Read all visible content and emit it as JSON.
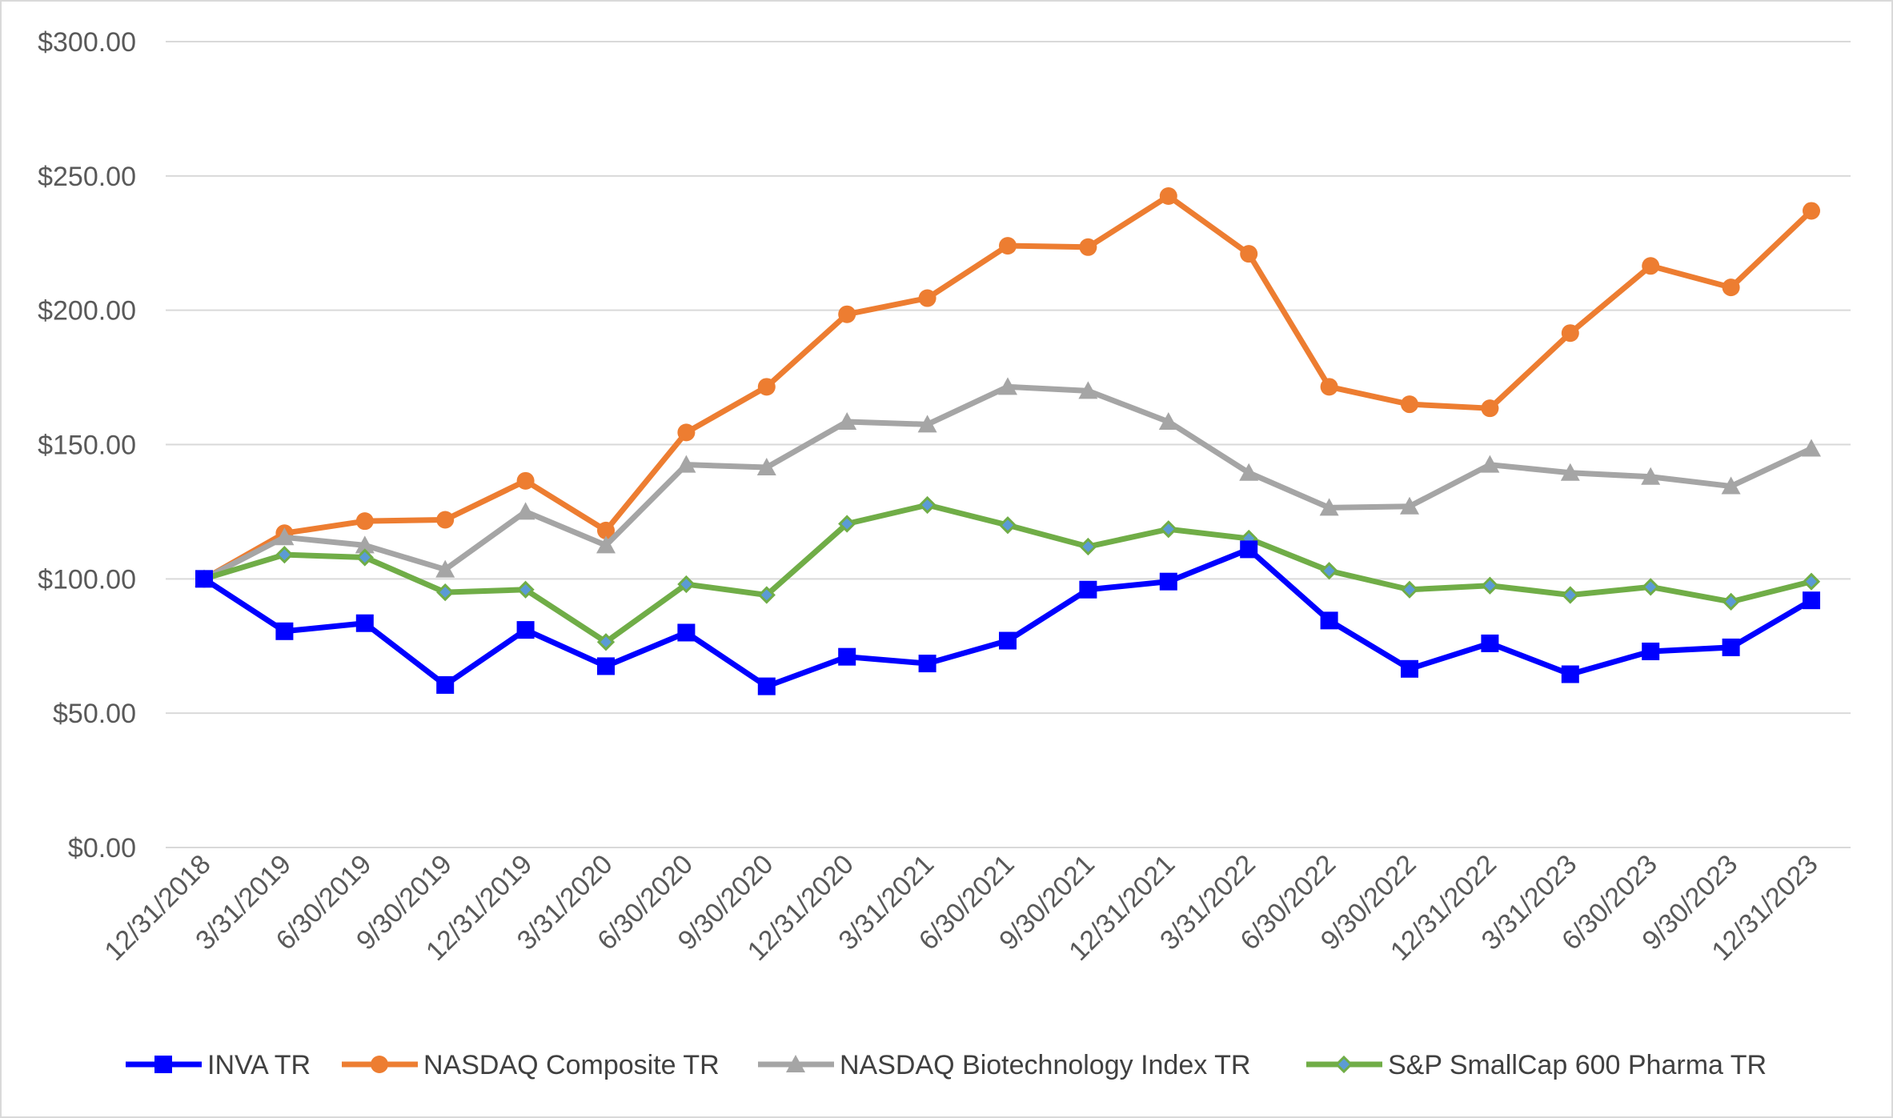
{
  "chart_data": {
    "type": "line",
    "title": "",
    "xlabel": "",
    "ylabel": "",
    "ylim": [
      0,
      300
    ],
    "y_ticks": [
      "$0.00",
      "$50.00",
      "$100.00",
      "$150.00",
      "$200.00",
      "$250.00",
      "$300.00"
    ],
    "y_tick_values": [
      0,
      50,
      100,
      150,
      200,
      250,
      300
    ],
    "categories": [
      "12/31/2018",
      "3/31/2019",
      "6/30/2019",
      "9/30/2019",
      "12/31/2019",
      "3/31/2020",
      "6/30/2020",
      "9/30/2020",
      "12/31/2020",
      "3/31/2021",
      "6/30/2021",
      "9/30/2021",
      "12/31/2021",
      "3/31/2022",
      "6/30/2022",
      "9/30/2022",
      "12/31/2022",
      "3/31/2023",
      "6/30/2023",
      "9/30/2023",
      "12/31/2023"
    ],
    "legend_position": "bottom",
    "grid": true,
    "series": [
      {
        "name": "INVA TR",
        "color": "#0000ff",
        "marker": "square",
        "values": [
          100,
          80.5,
          83.5,
          60.5,
          81,
          67.5,
          80,
          60,
          71,
          68.5,
          77,
          96,
          99,
          111,
          84.5,
          66.5,
          76,
          64.5,
          73,
          74.5,
          92
        ]
      },
      {
        "name": "NASDAQ Composite TR",
        "color": "#ed7d31",
        "marker": "circle",
        "values": [
          100,
          117,
          121.5,
          122,
          136.5,
          118,
          154.5,
          171.5,
          198.5,
          204.5,
          224,
          223.5,
          242.5,
          221,
          171.5,
          165,
          163.5,
          191.5,
          216.5,
          208.5,
          237
        ]
      },
      {
        "name": "NASDAQ Biotechnology Index TR",
        "color": "#a5a5a5",
        "marker": "triangle",
        "values": [
          100,
          115.5,
          112.5,
          103.5,
          125,
          112.5,
          142.5,
          141.5,
          158.5,
          157.5,
          171.5,
          170,
          158.5,
          139.5,
          126.5,
          127,
          142.5,
          139.5,
          138,
          134.5,
          148.5
        ]
      },
      {
        "name": "S&P SmallCap 600 Pharma TR",
        "color": "#70ad47",
        "marker": "diamond",
        "marker_fill": "#5b9bd5",
        "values": [
          100,
          109,
          108,
          95,
          96,
          76.5,
          98,
          94,
          120.5,
          127.5,
          120,
          112,
          118.5,
          115,
          103,
          96,
          97.5,
          94,
          97,
          91.5,
          99
        ]
      }
    ]
  }
}
